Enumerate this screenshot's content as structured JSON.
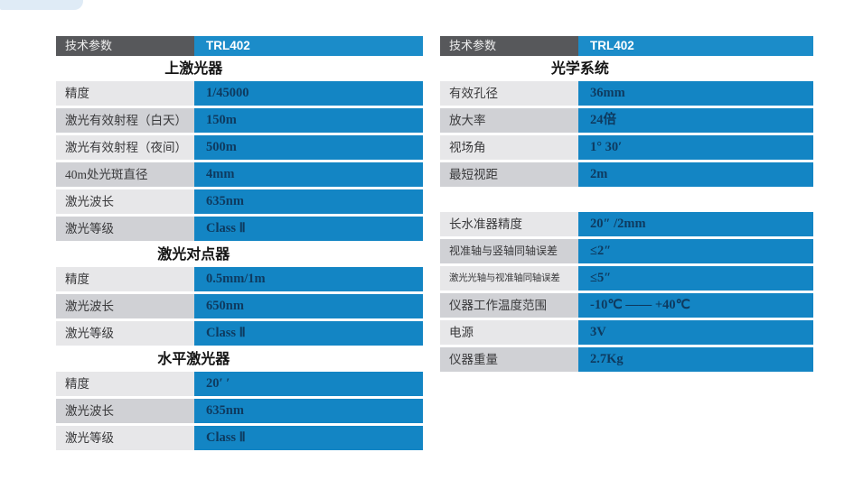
{
  "colors": {
    "accent_blue": "#1385c4",
    "header_blue": "#1b8cc9",
    "header_gray": "#57585b",
    "row_light": "#e7e7e9",
    "row_dark": "#d0d1d5",
    "value_text": "#0e3a5f"
  },
  "left_table": {
    "header": {
      "param": "技术参数",
      "model": "TRL402"
    },
    "sections": [
      {
        "title": "上激光器",
        "rows": [
          [
            "精度",
            "1/45000"
          ],
          [
            "激光有效射程（白天）",
            "150m"
          ],
          [
            "激光有效射程（夜间）",
            "500m"
          ],
          [
            "40m处光斑直径",
            "4mm"
          ],
          [
            "激光波长",
            "635nm"
          ],
          [
            "激光等级",
            "Class Ⅱ"
          ]
        ]
      },
      {
        "title": "激光对点器",
        "rows": [
          [
            "精度",
            "0.5mm/1m"
          ],
          [
            "激光波长",
            "650nm"
          ],
          [
            "激光等级",
            "Class Ⅱ"
          ]
        ]
      },
      {
        "title": "水平激光器",
        "rows": [
          [
            "精度",
            "20′ ′"
          ],
          [
            "激光波长",
            "635nm"
          ],
          [
            "激光等级",
            "Class Ⅱ"
          ]
        ]
      }
    ]
  },
  "right_table": {
    "header": {
      "param": "技术参数",
      "model": "TRL402"
    },
    "sections": [
      {
        "title": "光学系统",
        "rows": [
          [
            "有效孔径",
            "36mm"
          ],
          [
            "放大率",
            "24倍"
          ],
          [
            "视场角",
            "1° 30′"
          ],
          [
            "最短视距",
            "2m"
          ]
        ]
      },
      {
        "title": "",
        "rows": [
          [
            "长水准器精度",
            "20″ /2mm"
          ],
          [
            "视准轴与竖轴同轴误差",
            "≤2″"
          ],
          [
            "激光光轴与视准轴同轴误差",
            "≤5″"
          ],
          [
            "仪器工作温度范围",
            "-10℃ —— +40℃"
          ],
          [
            "电源",
            "3V"
          ],
          [
            "仪器重量",
            "2.7Kg"
          ]
        ]
      }
    ]
  }
}
